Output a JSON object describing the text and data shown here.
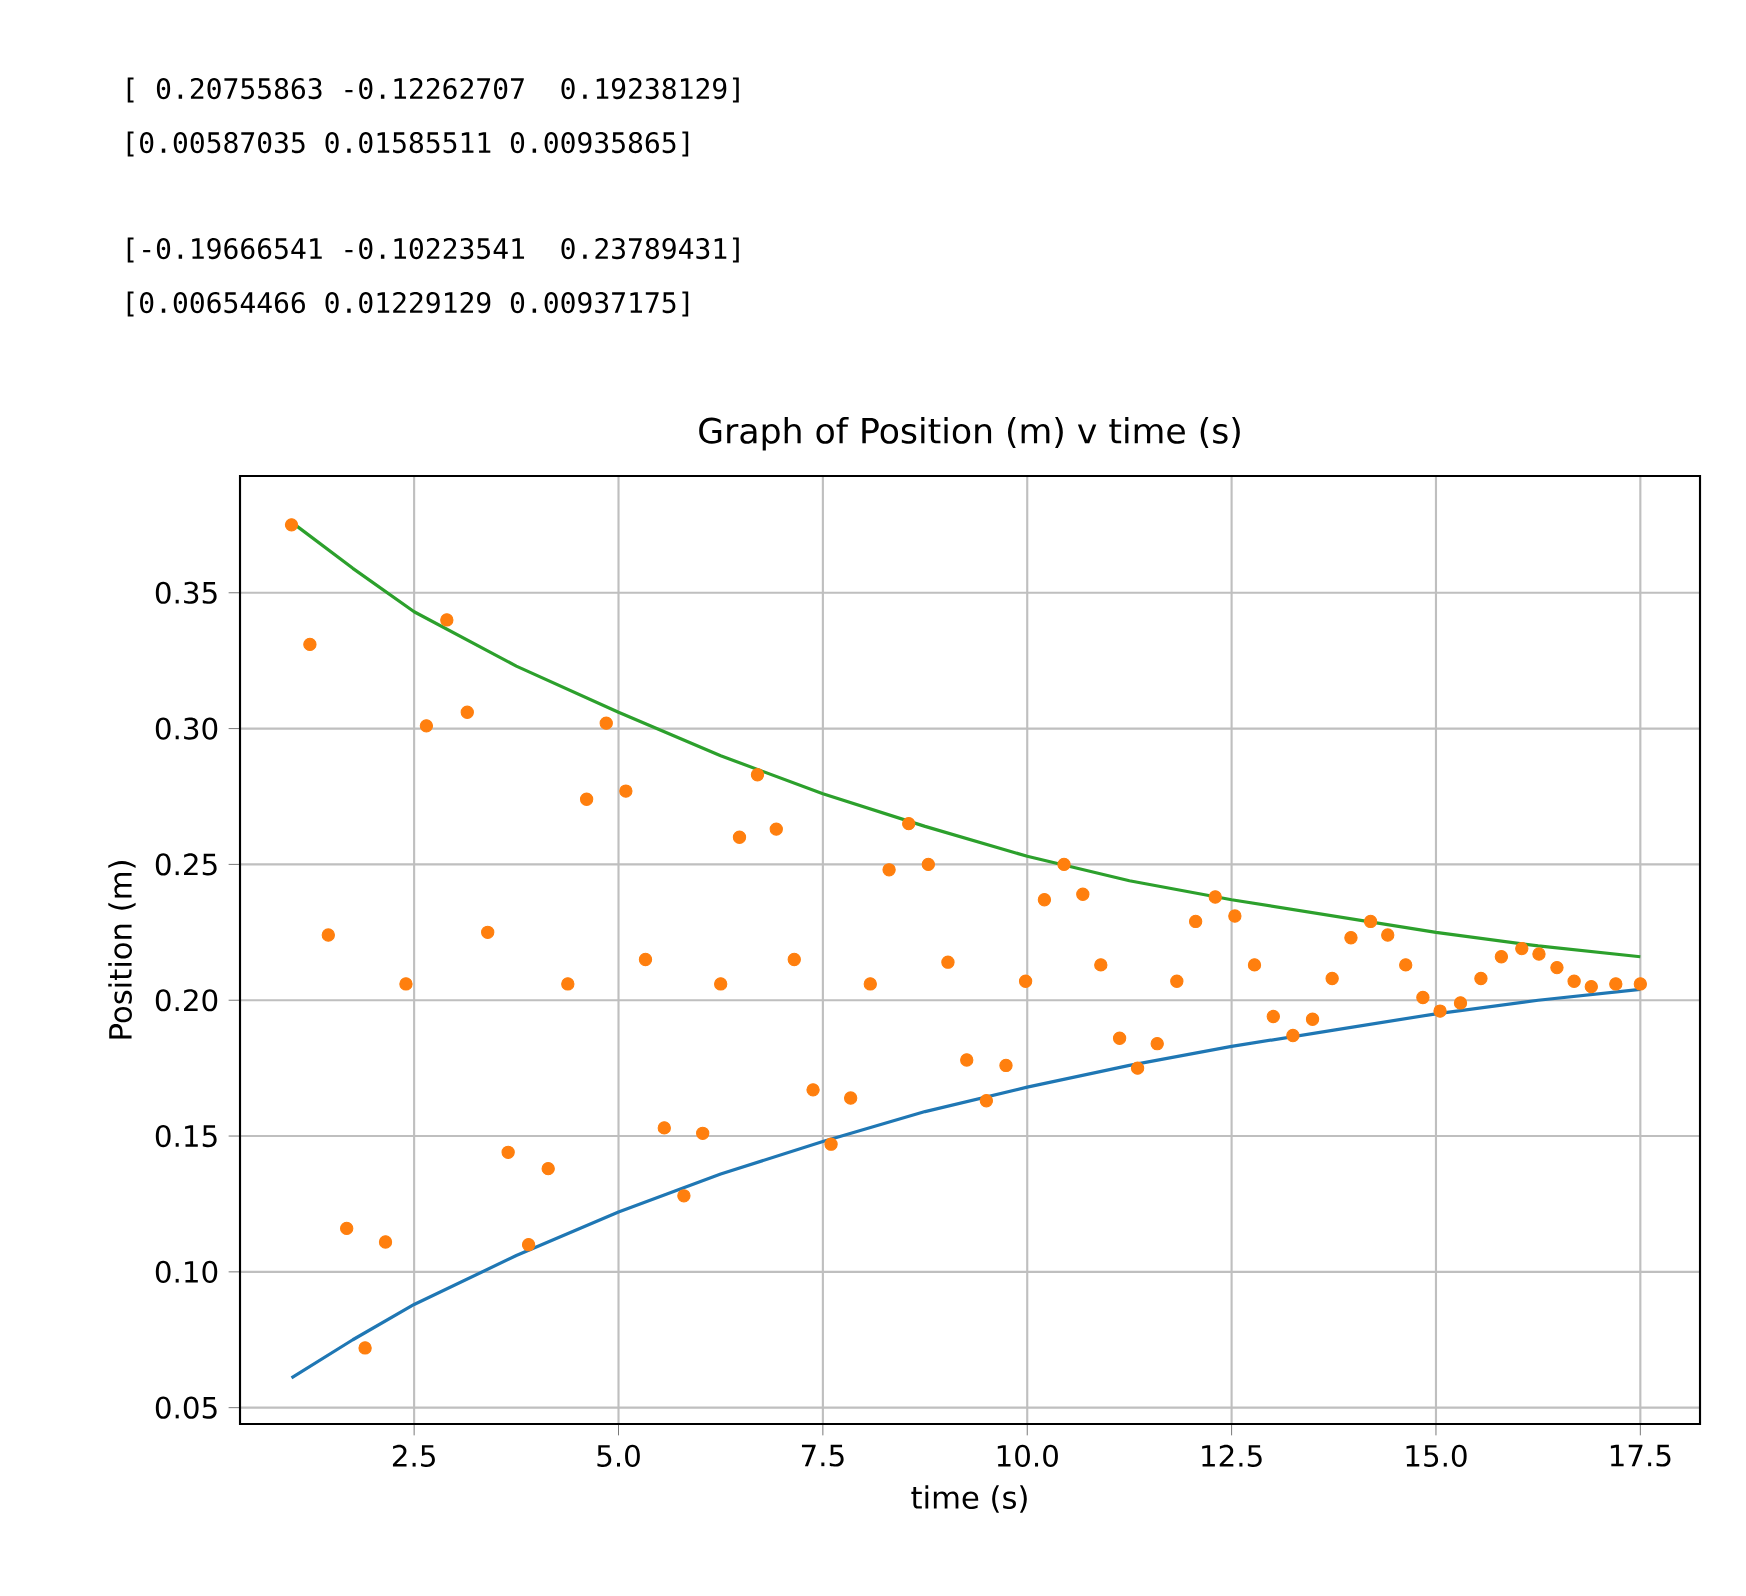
{
  "chart_data": {
    "type": "scatter",
    "title": "Graph of Position (m) v time (s)",
    "xlabel": "time (s)",
    "ylabel": "Position (m)",
    "annotations": [
      "[ 0.20755863 -0.12262707  0.19238129]",
      "[0.00587035 0.01585511 0.00935865]",
      "[-0.19666541 -0.10223541  0.23789431]",
      "[0.00654466 0.01229129 0.00937175]"
    ],
    "xlim": [
      0.37,
      18.23
    ],
    "ylim": [
      0.044,
      0.393
    ],
    "xticks": [
      {
        "value": 2.5,
        "label": "2.5"
      },
      {
        "value": 5,
        "label": "5.0"
      },
      {
        "value": 7.5,
        "label": "7.5"
      },
      {
        "value": 10,
        "label": "10.0"
      },
      {
        "value": 12.5,
        "label": "12.5"
      },
      {
        "value": 15,
        "label": "15.0"
      },
      {
        "value": 17.5,
        "label": "17.5"
      }
    ],
    "yticks": [
      {
        "value": 0.05,
        "label": "0.05"
      },
      {
        "value": 0.1,
        "label": "0.10"
      },
      {
        "value": 0.15,
        "label": "0.15"
      },
      {
        "value": 0.2,
        "label": "0.20"
      },
      {
        "value": 0.25,
        "label": "0.25"
      },
      {
        "value": 0.3,
        "label": "0.30"
      },
      {
        "value": 0.35,
        "label": "0.35"
      }
    ],
    "grid": true,
    "series": [
      {
        "type": "line",
        "color": "#1f77b4",
        "marker": "none",
        "x": [
          1,
          1.75,
          2.5,
          3.75,
          5,
          6.25,
          7.5,
          8.75,
          10,
          11.25,
          12.5,
          13.75,
          15,
          16.25,
          17.5
        ],
        "values": [
          0.061,
          0.075,
          0.088,
          0.106,
          0.122,
          0.136,
          0.148,
          0.159,
          0.168,
          0.176,
          0.183,
          0.189,
          0.195,
          0.2,
          0.204
        ]
      },
      {
        "color": "#ff7f0e",
        "marker": "circle",
        "x": [
          1.0,
          1.225,
          1.45,
          1.675,
          1.9,
          2.15,
          2.4,
          2.65,
          2.9,
          3.15,
          3.4,
          3.65,
          3.9,
          4.14,
          4.38,
          4.61,
          4.85,
          5.09,
          5.33,
          5.56,
          5.8,
          6.03,
          6.25,
          6.48,
          6.7,
          6.93,
          7.15,
          7.38,
          7.6,
          7.84,
          8.08,
          8.31,
          8.55,
          8.79,
          9.03,
          9.26,
          9.5,
          9.74,
          9.98,
          10.21,
          10.45,
          10.68,
          10.9,
          11.13,
          11.35,
          11.59,
          11.83,
          12.06,
          12.3,
          12.54,
          12.78,
          13.01,
          13.25,
          13.49,
          13.73,
          13.96,
          14.2,
          14.41,
          14.63,
          14.84,
          15.05,
          15.3,
          15.55,
          15.8,
          16.05,
          16.26,
          16.48,
          16.69,
          16.9,
          17.2,
          17.5
        ],
        "values": [
          0.375,
          0.331,
          0.224,
          0.116,
          0.072,
          0.111,
          0.206,
          0.301,
          0.34,
          0.306,
          0.225,
          0.144,
          0.11,
          0.138,
          0.206,
          0.274,
          0.302,
          0.277,
          0.215,
          0.153,
          0.128,
          0.151,
          0.206,
          0.26,
          0.283,
          0.263,
          0.215,
          0.167,
          0.147,
          0.164,
          0.206,
          0.248,
          0.265,
          0.25,
          0.214,
          0.178,
          0.163,
          0.176,
          0.207,
          0.237,
          0.25,
          0.239,
          0.213,
          0.186,
          0.175,
          0.184,
          0.207,
          0.229,
          0.238,
          0.231,
          0.213,
          0.194,
          0.187,
          0.193,
          0.208,
          0.223,
          0.229,
          0.224,
          0.213,
          0.201,
          0.196,
          0.199,
          0.208,
          0.216,
          0.219,
          0.217,
          0.212,
          0.207,
          0.205,
          0.206,
          0.206
        ]
      },
      {
        "type": "line",
        "color": "#2ca02c",
        "marker": "none",
        "x": [
          1,
          1.75,
          2.5,
          3.75,
          5,
          6.25,
          7.5,
          8.75,
          10,
          11.25,
          12.5,
          13.75,
          15,
          16.25,
          17.5
        ],
        "values": [
          0.376,
          0.359,
          0.343,
          0.323,
          0.306,
          0.29,
          0.276,
          0.264,
          0.253,
          0.244,
          0.237,
          0.231,
          0.225,
          0.22,
          0.216
        ]
      }
    ]
  }
}
